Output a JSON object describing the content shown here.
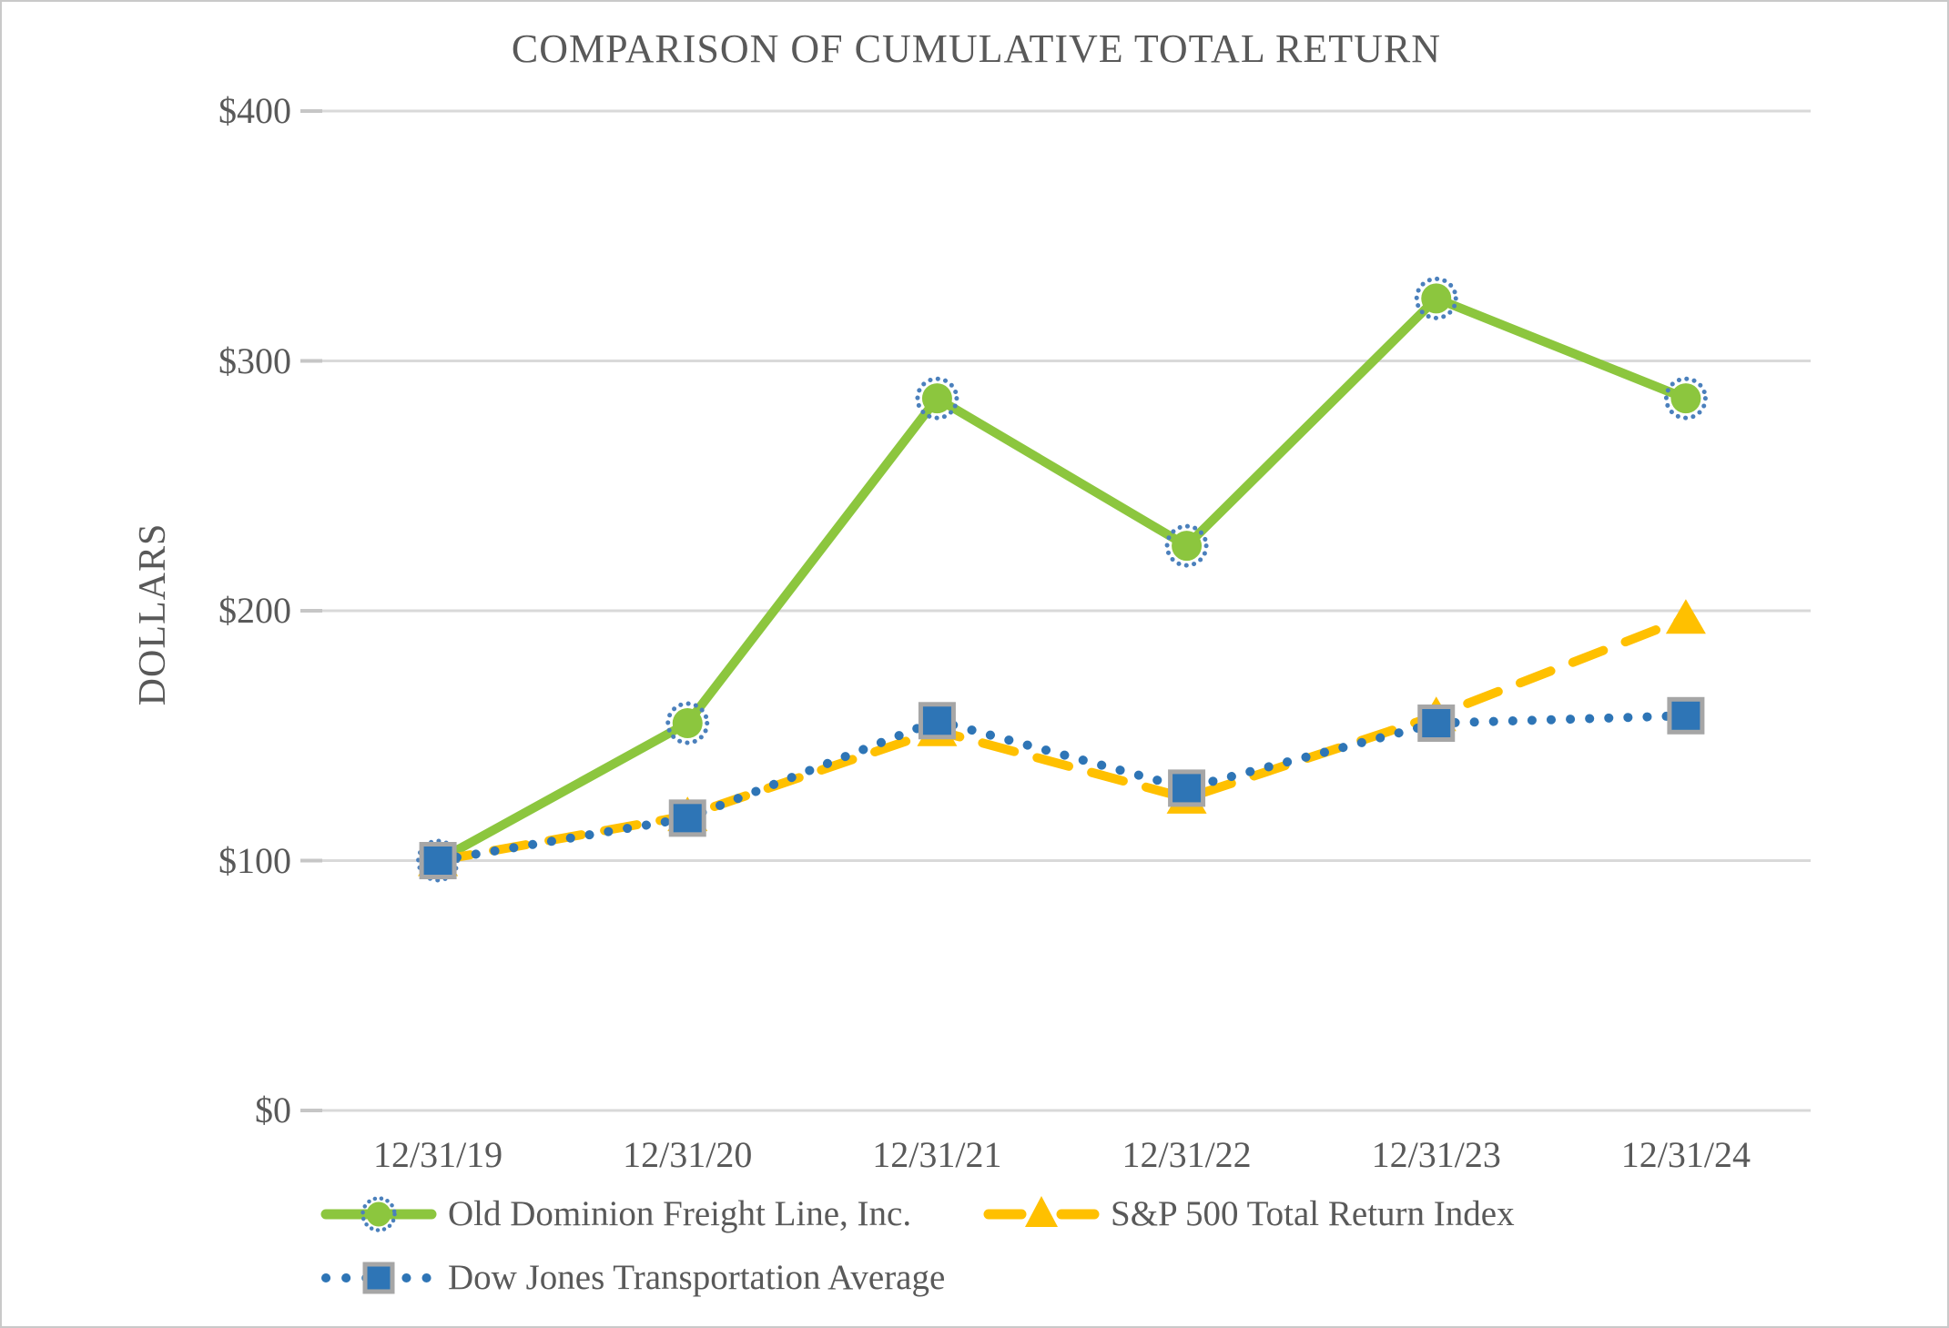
{
  "colors": {
    "text": "#595959",
    "grid": "#D9D9D9",
    "axis_tick": "#C6C6C6",
    "background": "#FFFFFF",
    "frame_border": "#C9C9C9"
  },
  "chart_data": {
    "type": "line",
    "title": "COMPARISON OF CUMULATIVE TOTAL RETURN",
    "ylabel": "DOLLARS",
    "xlabel": "",
    "categories": [
      "12/31/19",
      "12/31/20",
      "12/31/21",
      "12/31/22",
      "12/31/23",
      "12/31/24"
    ],
    "yticks": [
      {
        "label": "$400",
        "value": 400
      },
      {
        "label": "$300",
        "value": 300
      },
      {
        "label": "$200",
        "value": 200
      },
      {
        "label": "$100",
        "value": 100
      },
      {
        "label": "$0",
        "value": 0
      }
    ],
    "ylim": [
      0,
      400
    ],
    "grid": true,
    "legend_position": "bottom",
    "series": [
      {
        "name": "Old Dominion Freight Line, Inc.",
        "color": "#8CC63E",
        "line_style": "solid",
        "marker": "circle",
        "marker_ring_color": "#4B80BC",
        "values": [
          100,
          155,
          285,
          226,
          325,
          285
        ]
      },
      {
        "name": "S&P 500 Total Return Index",
        "color": "#FFC000",
        "line_style": "dashed",
        "marker": "triangle",
        "values": [
          100,
          118,
          152,
          125,
          158,
          197
        ]
      },
      {
        "name": "Dow Jones Transportation Average",
        "color": "#2E75B6",
        "line_style": "dotted",
        "marker": "square",
        "marker_border_color": "#A6A6A6",
        "values": [
          100,
          117,
          156,
          129,
          155,
          158
        ]
      }
    ]
  }
}
